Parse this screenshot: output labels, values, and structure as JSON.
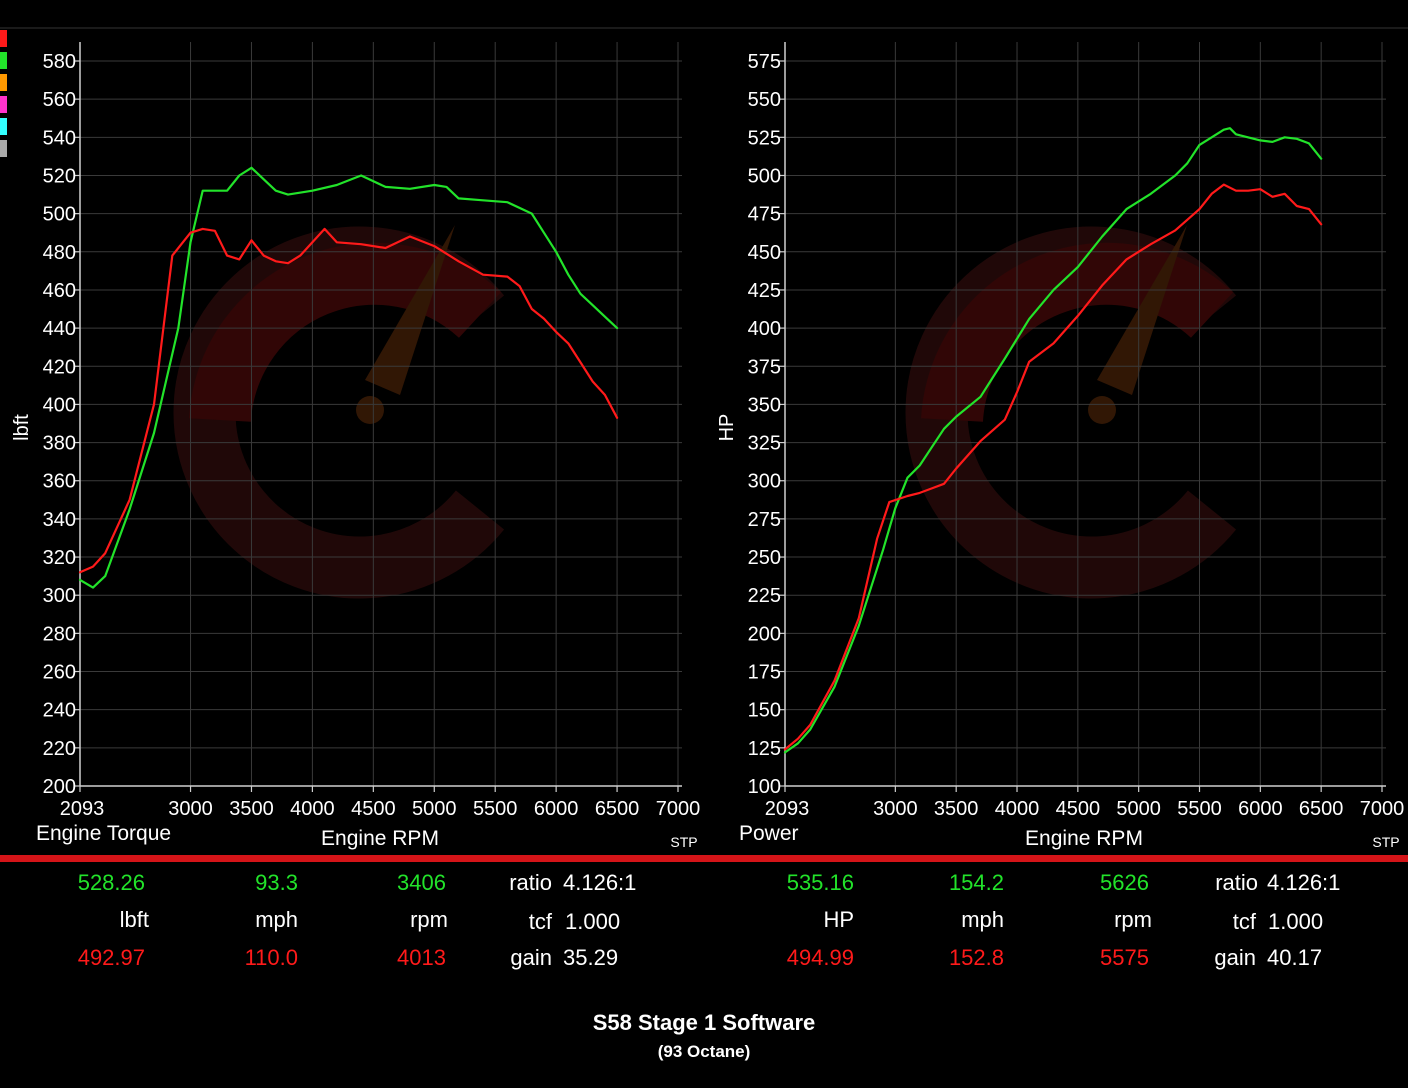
{
  "colors": {
    "series_a": "#22e32a",
    "series_b": "#ff1a1a",
    "grid": "#3a3a3a",
    "divider": "#d41418",
    "legend_swatches": [
      "#ff1a1a",
      "#22e32a",
      "#ff9900",
      "#ff33cc",
      "#33ffff",
      "#aaaaaa"
    ]
  },
  "chart_data": [
    {
      "type": "line",
      "title": "Engine Torque",
      "xlabel": "Engine RPM",
      "ylabel": "lbft",
      "corner_label": "STP",
      "xlim": [
        2093,
        7000
      ],
      "ylim": [
        200,
        590
      ],
      "x_ticks": [
        2093,
        3000,
        3500,
        4000,
        4500,
        5000,
        5500,
        6000,
        6500,
        7000
      ],
      "y_ticks": [
        200,
        220,
        240,
        260,
        280,
        300,
        320,
        340,
        360,
        380,
        400,
        420,
        440,
        460,
        480,
        500,
        520,
        540,
        560,
        580
      ],
      "grid": true,
      "series": [
        {
          "color": "#22e32a",
          "x": [
            2093,
            2200,
            2300,
            2500,
            2700,
            2900,
            3000,
            3100,
            3200,
            3300,
            3400,
            3500,
            3600,
            3700,
            3800,
            4000,
            4200,
            4400,
            4600,
            4800,
            5000,
            5100,
            5200,
            5400,
            5600,
            5800,
            5900,
            6000,
            6100,
            6200,
            6300,
            6400,
            6500
          ],
          "y": [
            308,
            304,
            310,
            345,
            385,
            440,
            485,
            512,
            512,
            512,
            520,
            524,
            518,
            512,
            510,
            512,
            515,
            520,
            514,
            513,
            515,
            514,
            508,
            507,
            506,
            500,
            490,
            480,
            468,
            458,
            452,
            446,
            440
          ]
        },
        {
          "color": "#ff1a1a",
          "x": [
            2093,
            2200,
            2300,
            2500,
            2700,
            2850,
            3000,
            3100,
            3200,
            3300,
            3400,
            3500,
            3600,
            3700,
            3800,
            3900,
            4000,
            4100,
            4200,
            4400,
            4600,
            4800,
            5000,
            5200,
            5400,
            5600,
            5700,
            5800,
            5900,
            6000,
            6100,
            6200,
            6300,
            6400,
            6500
          ],
          "y": [
            312,
            315,
            322,
            350,
            400,
            478,
            490,
            492,
            491,
            478,
            476,
            486,
            478,
            475,
            474,
            478,
            485,
            492,
            485,
            484,
            482,
            488,
            483,
            475,
            468,
            467,
            462,
            450,
            445,
            438,
            432,
            422,
            412,
            405,
            393
          ]
        }
      ]
    },
    {
      "type": "line",
      "title": "Power",
      "xlabel": "Engine RPM",
      "ylabel": "HP",
      "corner_label": "STP",
      "xlim": [
        2093,
        7000
      ],
      "ylim": [
        100,
        585
      ],
      "x_ticks": [
        2093,
        3000,
        3500,
        4000,
        4500,
        5000,
        5500,
        6000,
        6500,
        7000
      ],
      "y_ticks": [
        100,
        125,
        150,
        175,
        200,
        225,
        250,
        275,
        300,
        325,
        350,
        375,
        400,
        425,
        450,
        475,
        500,
        525,
        550,
        575
      ],
      "grid": true,
      "series": [
        {
          "color": "#22e32a",
          "x": [
            2093,
            2200,
            2300,
            2500,
            2700,
            2900,
            3000,
            3100,
            3200,
            3300,
            3400,
            3500,
            3700,
            3900,
            4100,
            4300,
            4500,
            4700,
            4900,
            5100,
            5300,
            5400,
            5500,
            5600,
            5700,
            5750,
            5800,
            6000,
            6100,
            6200,
            6300,
            6400,
            6500
          ],
          "y": [
            122,
            128,
            137,
            165,
            205,
            255,
            282,
            302,
            310,
            322,
            334,
            342,
            355,
            380,
            406,
            425,
            440,
            460,
            478,
            488,
            500,
            508,
            520,
            525,
            530,
            531,
            527,
            523,
            522,
            525,
            524,
            521,
            511
          ]
        },
        {
          "color": "#ff1a1a",
          "x": [
            2093,
            2200,
            2300,
            2500,
            2700,
            2850,
            2950,
            3100,
            3200,
            3300,
            3400,
            3500,
            3700,
            3900,
            4000,
            4100,
            4300,
            4500,
            4700,
            4900,
            5100,
            5300,
            5500,
            5600,
            5700,
            5800,
            5900,
            6000,
            6100,
            6200,
            6300,
            6400,
            6500
          ],
          "y": [
            124,
            131,
            140,
            169,
            210,
            262,
            286,
            290,
            292,
            295,
            298,
            308,
            326,
            340,
            358,
            378,
            390,
            408,
            428,
            445,
            455,
            464,
            478,
            488,
            494,
            490,
            490,
            491,
            486,
            488,
            480,
            478,
            468
          ]
        }
      ]
    }
  ],
  "stats": {
    "left": {
      "a_value": "528.26",
      "a_speed": "93.3",
      "a_rpm": "3406",
      "unit_value": "lbft",
      "unit_speed": "mph",
      "unit_rpm": "rpm",
      "b_value": "492.97",
      "b_speed": "110.0",
      "b_rpm": "4013",
      "ratio_label": "ratio",
      "ratio_value": "4.126:1",
      "tcf_label": "tcf",
      "tcf_value": "1.000",
      "gain_label": "gain",
      "gain_value": "35.29"
    },
    "right": {
      "a_value": "535.16",
      "a_speed": "154.2",
      "a_rpm": "5626",
      "unit_value": "HP",
      "unit_speed": "mph",
      "unit_rpm": "rpm",
      "b_value": "494.99",
      "b_speed": "152.8",
      "b_rpm": "5575",
      "ratio_label": "ratio",
      "ratio_value": "4.126:1",
      "tcf_label": "tcf",
      "tcf_value": "1.000",
      "gain_label": "gain",
      "gain_value": "40.17"
    }
  },
  "footer": {
    "title": "S58 Stage 1 Software",
    "subtitle": "(93 Octane)"
  }
}
